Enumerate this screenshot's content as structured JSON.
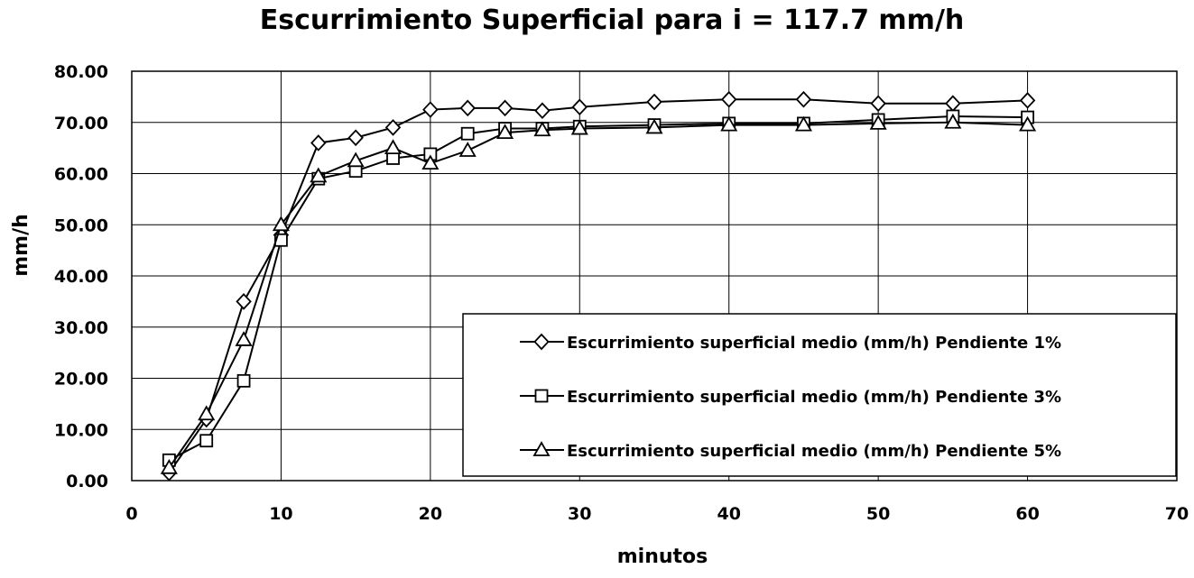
{
  "chart_data": {
    "type": "line",
    "title": "Escurrimiento Superficial  para  i = 117.7 mm/h",
    "xlabel": "minutos",
    "ylabel": "mm/h",
    "xlim": [
      0,
      70
    ],
    "ylim": [
      0,
      80
    ],
    "x_ticks": [
      0,
      10,
      20,
      30,
      40,
      50,
      60,
      70
    ],
    "y_ticks": [
      0,
      10,
      20,
      30,
      40,
      50,
      60,
      70,
      80
    ],
    "y_tick_labels": [
      "0.00",
      "10.00",
      "20.00",
      "30.00",
      "40.00",
      "50.00",
      "60.00",
      "70.00",
      "80.00"
    ],
    "grid": true,
    "legend_position": "bottom-right",
    "series": [
      {
        "name": "Escurrimiento superficial medio (mm/h) Pendiente 1%",
        "marker": "diamond",
        "x": [
          2.5,
          5,
          7.5,
          10,
          12.5,
          15,
          17.5,
          20,
          22.5,
          25,
          27.5,
          30,
          35,
          40,
          45,
          50,
          55,
          60
        ],
        "y": [
          1.5,
          12.0,
          35.0,
          48.0,
          66.0,
          67.0,
          69.0,
          72.5,
          72.8,
          72.8,
          72.3,
          73.0,
          74.0,
          74.5,
          74.5,
          73.7,
          73.7,
          74.3
        ]
      },
      {
        "name": "Escurrimiento superficial medio (mm/h) Pendiente 3%",
        "marker": "square",
        "x": [
          2.5,
          5,
          7.5,
          10,
          12.5,
          15,
          17.5,
          20,
          22.5,
          25,
          27.5,
          30,
          35,
          40,
          45,
          50,
          55,
          60
        ],
        "y": [
          4.0,
          7.8,
          19.5,
          47.0,
          59.0,
          60.5,
          63.0,
          63.8,
          67.8,
          68.8,
          68.8,
          69.2,
          69.5,
          69.8,
          69.8,
          70.5,
          71.2,
          71.0
        ]
      },
      {
        "name": "Escurrimiento superficial medio (mm/h) Pendiente 5%",
        "marker": "triangle",
        "x": [
          2.5,
          5,
          7.5,
          10,
          12.5,
          15,
          17.5,
          20,
          22.5,
          25,
          27.5,
          30,
          35,
          40,
          45,
          50,
          55,
          60
        ],
        "y": [
          2.5,
          13.0,
          27.5,
          50.0,
          59.5,
          62.5,
          65.0,
          62.0,
          64.5,
          68.0,
          68.5,
          68.8,
          69.0,
          69.5,
          69.5,
          69.8,
          70.0,
          69.5
        ]
      }
    ]
  }
}
